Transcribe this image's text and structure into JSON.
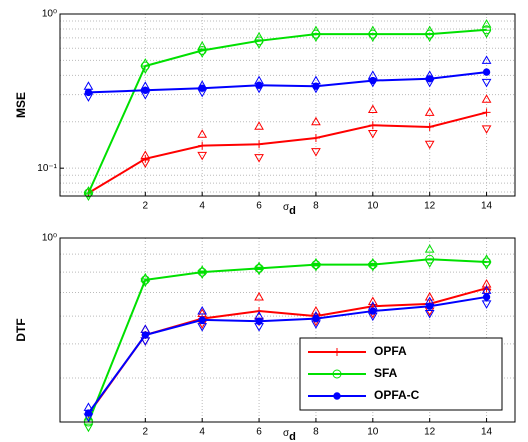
{
  "chart_data": [
    {
      "type": "line",
      "ylabel": "MSE",
      "xlabel": "σd",
      "log_scale": true,
      "grid": true,
      "xlim": [
        -1,
        15
      ],
      "xticks": [
        2,
        4,
        6,
        8,
        10,
        12,
        14
      ],
      "ylim": [
        0.066,
        1
      ],
      "yticks": [
        {
          "value": 1,
          "label": "10⁰"
        },
        {
          "value": 0.1,
          "label": "10⁻¹"
        }
      ],
      "x": [
        0,
        2,
        4,
        6,
        8,
        10,
        12,
        14
      ],
      "series": [
        {
          "name": "OPFA",
          "color": "#ff0000",
          "marker": "plus",
          "values": [
            0.069,
            0.115,
            0.14,
            0.143,
            0.157,
            0.19,
            0.185,
            0.23
          ],
          "upper": [
            null,
            0.121,
            0.166,
            0.187,
            0.2,
            0.24,
            0.23,
            0.28
          ],
          "lower": [
            null,
            0.108,
            0.121,
            0.117,
            0.128,
            0.168,
            0.143,
            0.18
          ]
        },
        {
          "name": "SFA",
          "color": "#00e000",
          "marker": "circle",
          "values": [
            0.069,
            0.46,
            0.58,
            0.67,
            0.74,
            0.74,
            0.74,
            0.79
          ],
          "upper": [
            0.071,
            0.48,
            0.62,
            0.71,
            0.78,
            0.78,
            0.78,
            0.86
          ],
          "lower": [
            0.066,
            0.44,
            0.56,
            0.64,
            0.71,
            0.71,
            0.71,
            0.75
          ]
        },
        {
          "name": "OPFA-C",
          "color": "#0000ff",
          "marker": "dot",
          "values": [
            0.31,
            0.32,
            0.33,
            0.345,
            0.34,
            0.37,
            0.38,
            0.42
          ],
          "upper": [
            0.34,
            0.34,
            0.345,
            0.37,
            0.37,
            0.4,
            0.4,
            0.5
          ],
          "lower": [
            0.29,
            0.3,
            0.31,
            0.33,
            0.33,
            0.36,
            0.36,
            0.36
          ]
        }
      ]
    },
    {
      "type": "line",
      "ylabel": "DTF",
      "xlabel": "σd",
      "log_scale": true,
      "grid": true,
      "legend": "lower right",
      "xlim": [
        -1,
        15
      ],
      "xticks": [
        2,
        4,
        6,
        8,
        10,
        12,
        14
      ],
      "ylim": [
        0.3,
        1
      ],
      "yticks": [
        {
          "value": 1,
          "label": "10⁰"
        }
      ],
      "x": [
        0,
        2,
        4,
        6,
        8,
        10,
        12,
        14
      ],
      "series": [
        {
          "name": "OPFA",
          "color": "#ff0000",
          "marker": "plus",
          "values": [
            0.316,
            0.53,
            0.59,
            0.62,
            0.6,
            0.64,
            0.65,
            0.72
          ],
          "upper": [
            null,
            0.55,
            0.61,
            0.68,
            0.62,
            0.66,
            0.68,
            0.74
          ],
          "lower": [
            null,
            0.51,
            0.57,
            0.58,
            0.58,
            0.61,
            0.62,
            0.7
          ]
        },
        {
          "name": "SFA",
          "color": "#00e000",
          "marker": "circle",
          "values": [
            0.3,
            0.76,
            0.8,
            0.82,
            0.84,
            0.84,
            0.87,
            0.855
          ],
          "upper": [
            0.31,
            0.77,
            0.81,
            0.83,
            0.85,
            0.85,
            0.93,
            0.87
          ],
          "lower": [
            0.29,
            0.75,
            0.79,
            0.81,
            0.83,
            0.83,
            0.85,
            0.84
          ]
        },
        {
          "name": "OPFA-C",
          "color": "#0000ff",
          "marker": "dot",
          "values": [
            0.318,
            0.53,
            0.585,
            0.58,
            0.59,
            0.62,
            0.64,
            0.68
          ],
          "upper": [
            0.33,
            0.55,
            0.62,
            0.6,
            0.6,
            0.64,
            0.66,
            0.71
          ],
          "lower": [
            0.31,
            0.51,
            0.56,
            0.56,
            0.57,
            0.6,
            0.61,
            0.65
          ]
        }
      ]
    }
  ]
}
